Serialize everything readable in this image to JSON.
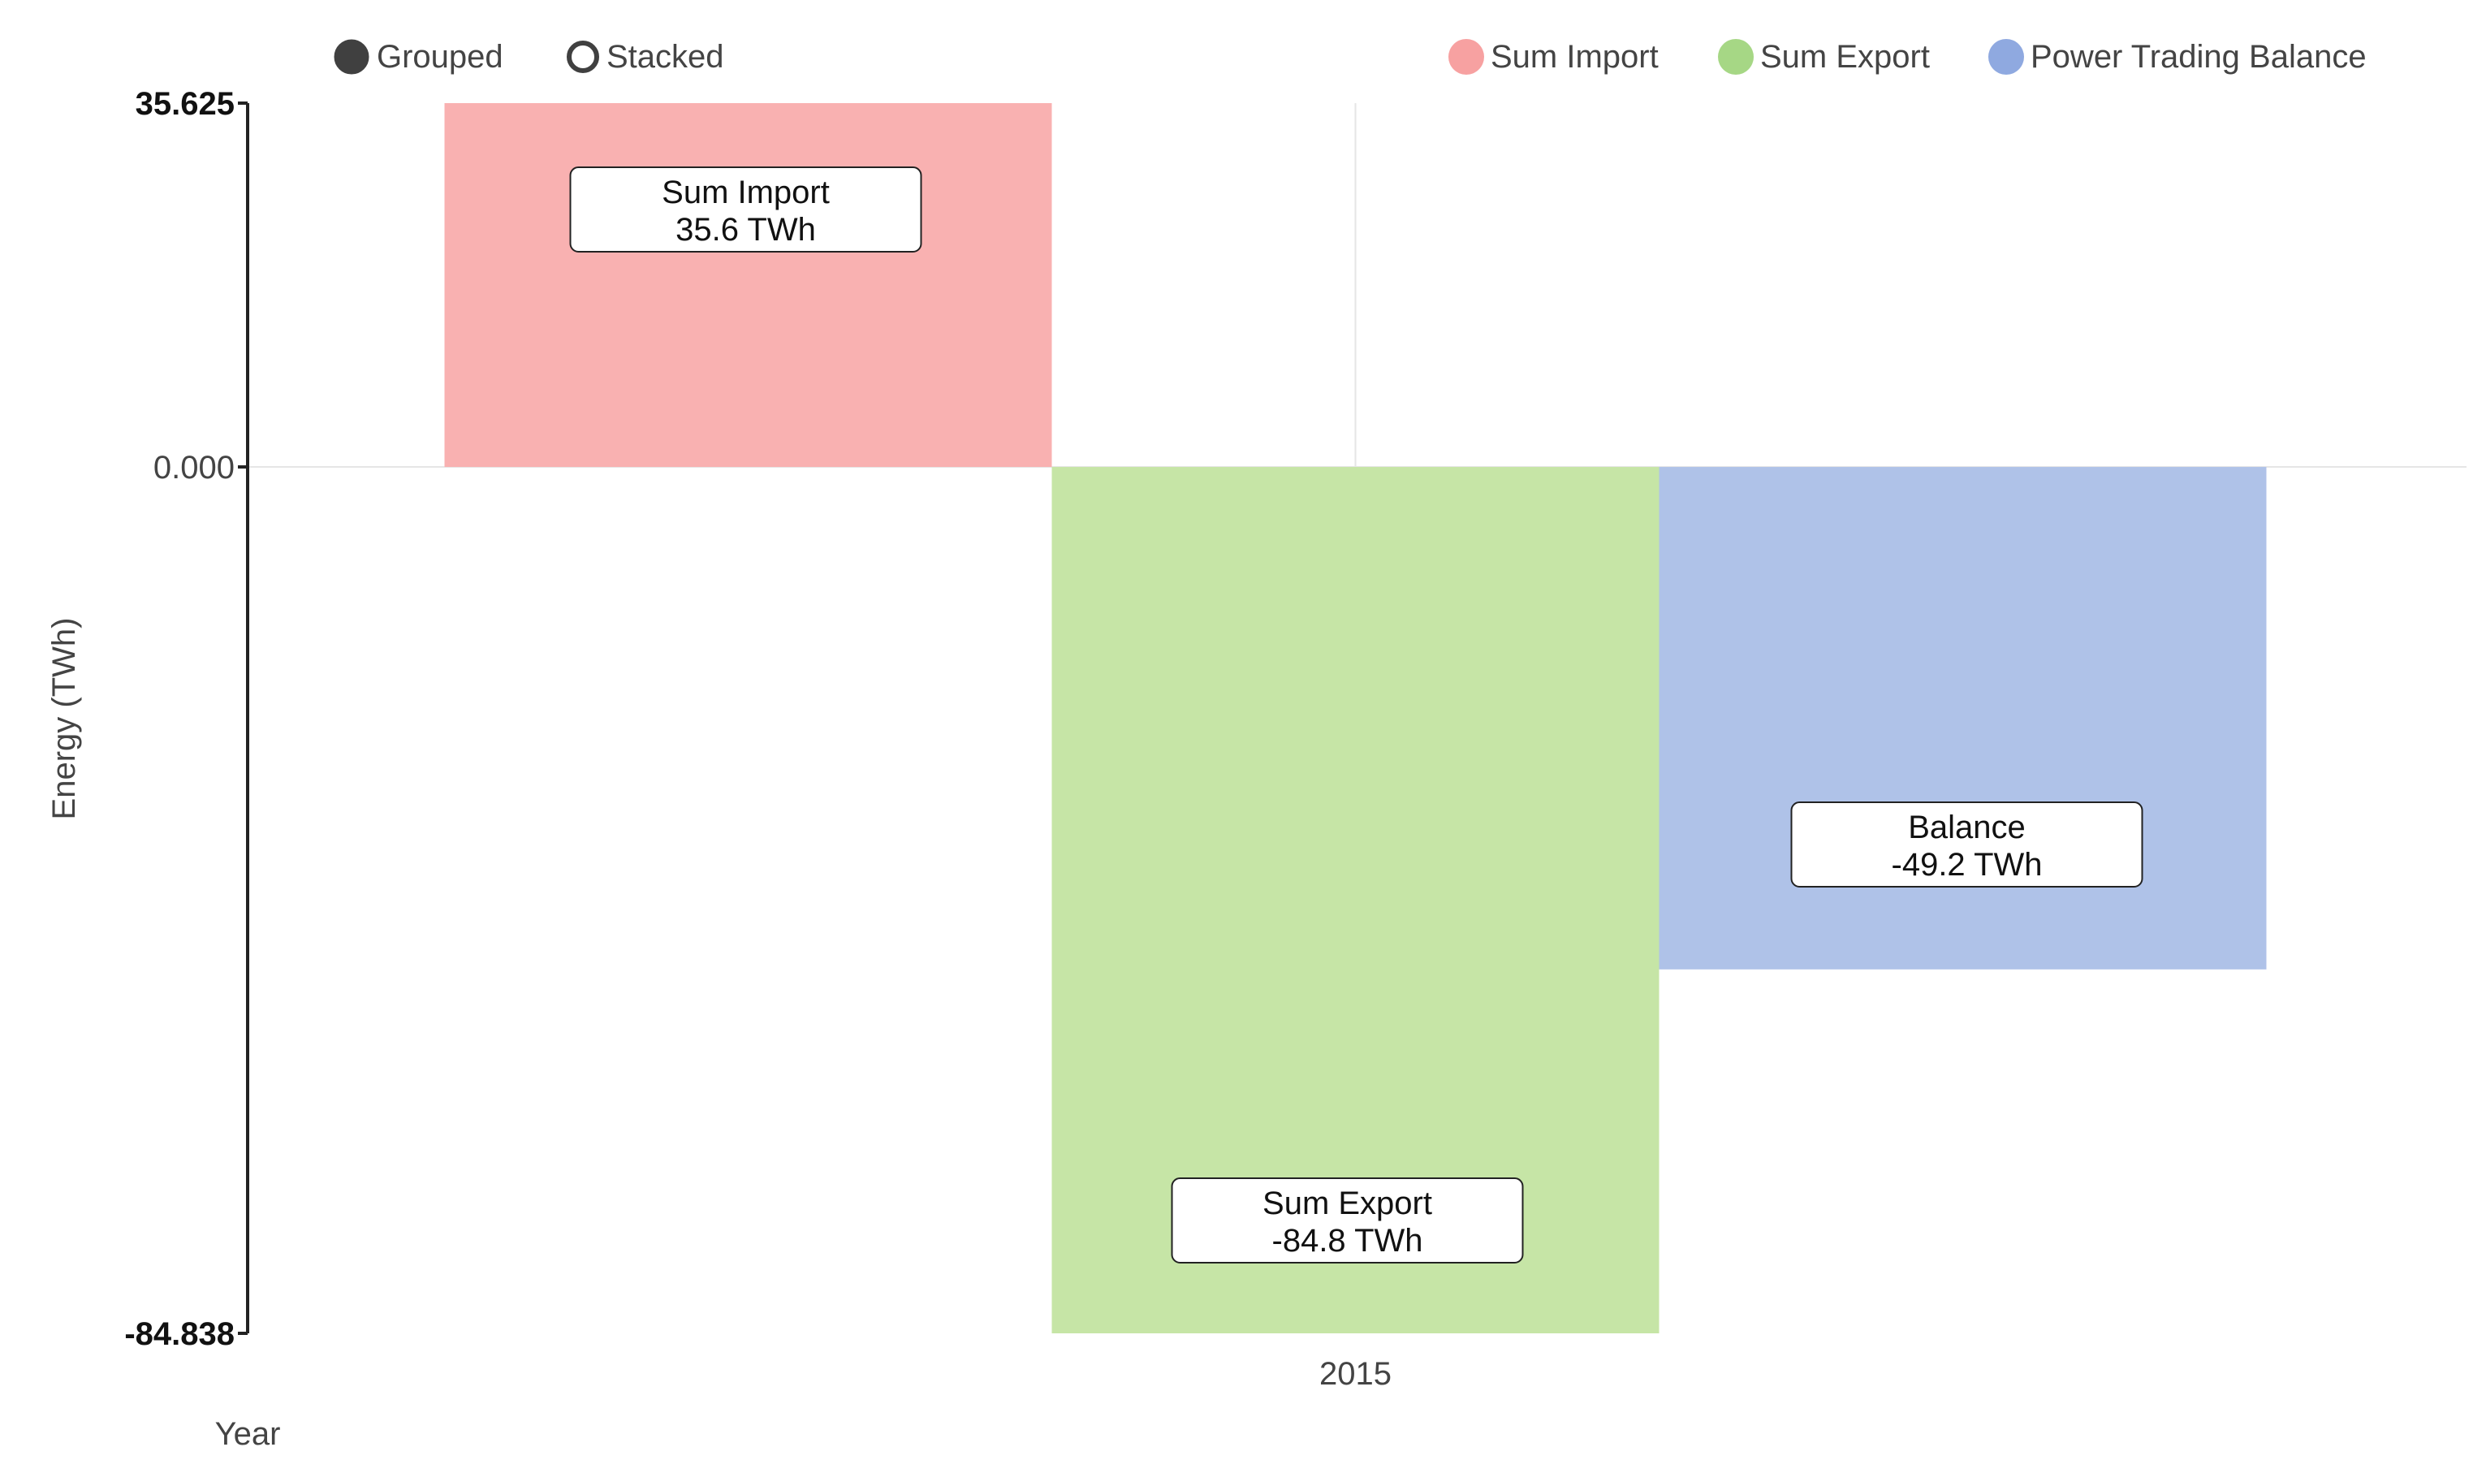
{
  "controls": {
    "grouped_label": "Grouped",
    "stacked_label": "Stacked",
    "selected": "Grouped"
  },
  "legend": [
    {
      "label": "Sum Import",
      "color": "#f7a1a1"
    },
    {
      "label": "Sum Export",
      "color": "#a6d785"
    },
    {
      "label": "Power Trading Balance",
      "color": "#8fa9e0"
    }
  ],
  "chart_data": {
    "type": "bar",
    "categories": [
      "2015"
    ],
    "series": [
      {
        "name": "Sum Import",
        "values": [
          35.625
        ],
        "color": "#f9b1b1",
        "tooltip_title": "Sum Import",
        "tooltip_value": "35.6 TWh"
      },
      {
        "name": "Sum Export",
        "values": [
          -84.838
        ],
        "color": "#c6e5a6",
        "tooltip_title": "Sum Export",
        "tooltip_value": "-84.8 TWh"
      },
      {
        "name": "Power Trading Balance",
        "values": [
          -49.2
        ],
        "color": "#afc2e8",
        "tooltip_title": "Balance",
        "tooltip_value": "-49.2 TWh"
      }
    ],
    "ylim": [
      -84.838,
      35.625
    ],
    "yticks": [
      "35.625",
      "0.000",
      "-84.838"
    ],
    "ylabel": "Energy (TWh)",
    "xlabel": "Year",
    "mode": "grouped",
    "legend_position": "top-right",
    "grid": true
  }
}
